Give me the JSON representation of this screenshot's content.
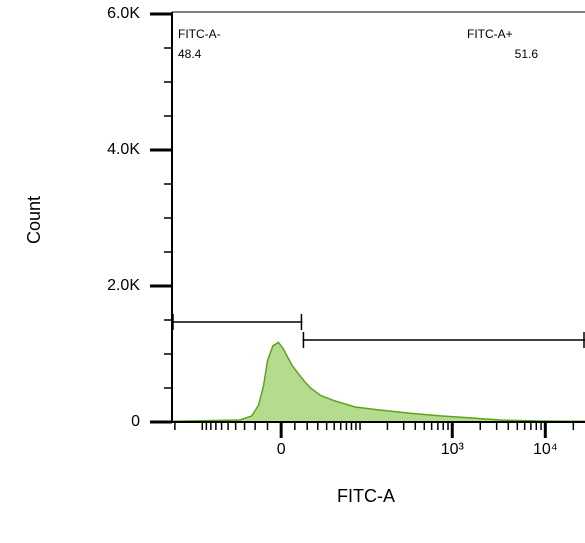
{
  "chart_data": {
    "type": "area",
    "x_label": "FITC-A",
    "y_label": "Count",
    "xscale": "biexponential",
    "xlim": [
      -215,
      26700
    ],
    "xticks": [
      0,
      {
        "value": 1000,
        "label": "10³"
      },
      {
        "value": 10000,
        "label": "10⁴"
      }
    ],
    "xminorticks": [
      -200,
      -100,
      -90,
      -80,
      -70,
      -60,
      -50,
      -40,
      -30,
      -20,
      -10,
      10,
      20,
      30,
      40,
      50,
      60,
      70,
      80,
      90,
      100,
      200,
      300,
      400,
      500,
      600,
      700,
      800,
      900,
      2000,
      3000,
      4000,
      5000,
      6000,
      7000,
      8000,
      9000,
      20000
    ],
    "ylim": [
      0,
      6000
    ],
    "yticks": [
      0,
      {
        "value": 2000,
        "label": "2.0K"
      },
      {
        "value": 4000,
        "label": "4.0K"
      },
      {
        "value": 6000,
        "label": "6.0K"
      }
    ],
    "yminorticks": [
      500,
      1000,
      1500,
      2500,
      3000,
      3500,
      4500,
      5000,
      5500
    ],
    "color": "#5aa51c",
    "fill": "#b5db8f",
    "x": [
      -215,
      -35,
      -23,
      -17,
      -13,
      -10,
      -6,
      -2,
      1.5,
      4,
      8,
      12,
      17,
      23,
      33,
      51,
      88,
      167,
      351,
      745,
      1563,
      3280,
      8820,
      26700
    ],
    "values": [
      10,
      30,
      90,
      250,
      540,
      900,
      1120,
      1170,
      1080,
      980,
      830,
      730,
      610,
      500,
      390,
      310,
      220,
      175,
      130,
      90,
      60,
      30,
      15,
      10
    ],
    "gates": [
      {
        "name": "FITC-A-",
        "percent": 48.4,
        "range": [
          -215,
          16
        ]
      },
      {
        "name": "FITC-A+",
        "percent": 51.6,
        "range": [
          16,
          26700
        ]
      }
    ]
  }
}
